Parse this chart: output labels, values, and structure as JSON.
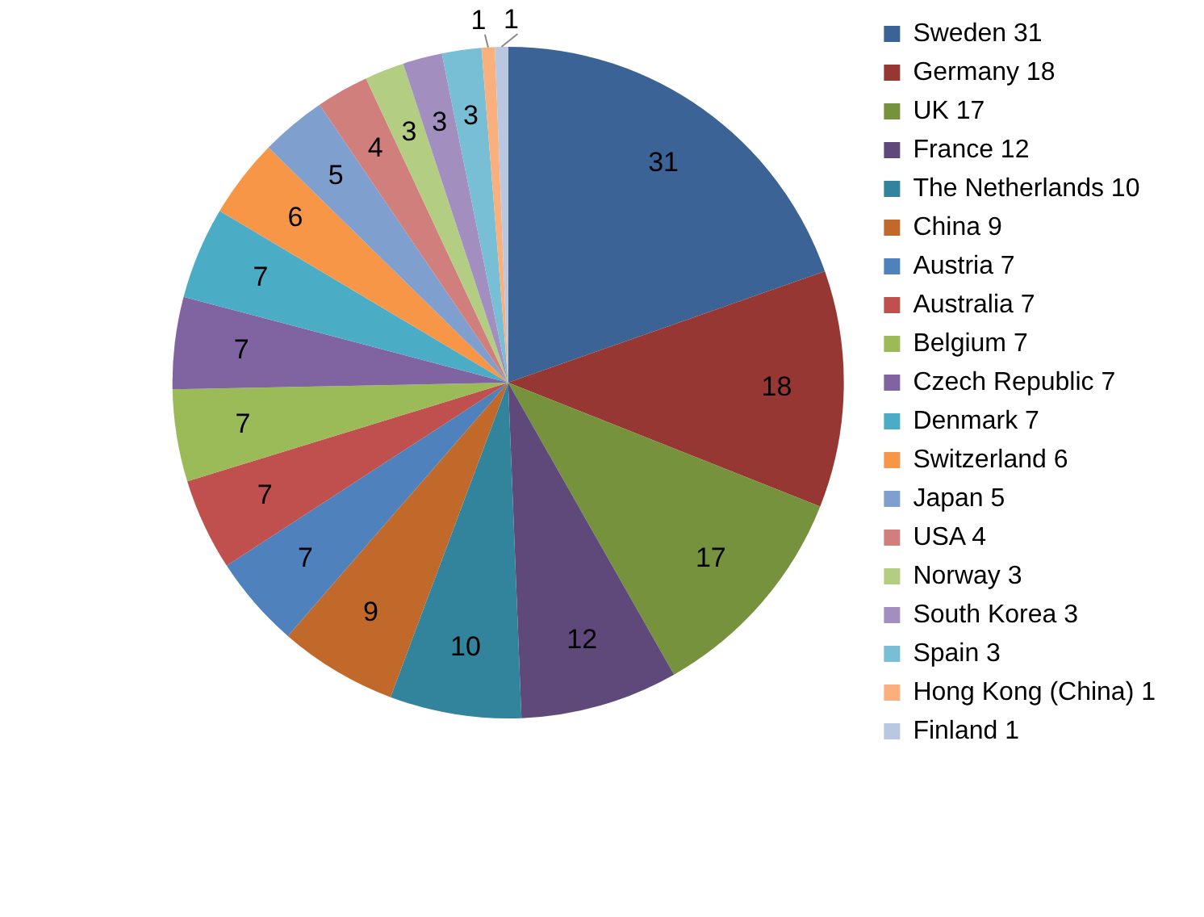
{
  "chart_data": {
    "type": "pie",
    "categories": [
      "Sweden 31",
      "Germany 18",
      "UK 17",
      "France 12",
      "The Netherlands 10",
      "China 9",
      "Austria 7",
      "Australia 7",
      "Belgium 7",
      "Czech Republic 7",
      "Denmark 7",
      "Switzerland 6",
      "Japan 5",
      "USA 4",
      "Norway 3",
      "South Korea 3",
      "Spain 3",
      "Hong Kong (China) 1",
      "Finland 1"
    ],
    "values": [
      31,
      18,
      17,
      12,
      10,
      9,
      7,
      7,
      7,
      7,
      7,
      6,
      5,
      4,
      3,
      3,
      3,
      1,
      1
    ],
    "colors": [
      "#3b6396",
      "#963734",
      "#76923c",
      "#5f497a",
      "#31849b",
      "#c0692a",
      "#4f81bd",
      "#c0504d",
      "#9bbb59",
      "#8064a2",
      "#4bacc6",
      "#f79646",
      "#7f9fcf",
      "#d07f7d",
      "#b3cd82",
      "#a28fc0",
      "#78bfd5",
      "#f9b07d",
      "#b9c7e0"
    ],
    "data_labels": true,
    "legend": "right"
  }
}
